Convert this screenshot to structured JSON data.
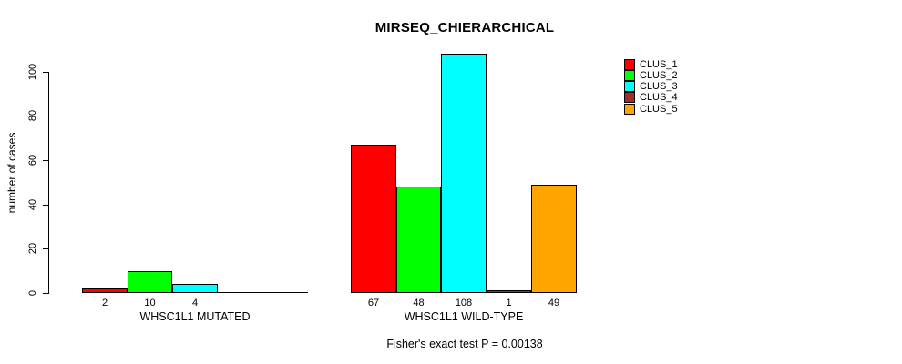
{
  "chart_data": {
    "type": "bar",
    "title": "MIRSEQ_CHIERARCHICAL",
    "ylabel": "number of cases",
    "yticks": [
      0,
      20,
      40,
      60,
      80,
      100
    ],
    "ylim": [
      0,
      110
    ],
    "grid": false,
    "legend_position": "top-right",
    "legend": [
      {
        "label": "CLUS_1",
        "color": "#FF0000"
      },
      {
        "label": "CLUS_2",
        "color": "#00FF00"
      },
      {
        "label": "CLUS_3",
        "color": "#00FFFF"
      },
      {
        "label": "CLUS_4",
        "color": "#A52A2A"
      },
      {
        "label": "CLUS_5",
        "color": "#FFA500"
      }
    ],
    "groups": [
      {
        "label": "WHSC1L1 MUTATED",
        "values": [
          2,
          10,
          4,
          0,
          0
        ],
        "bar_labels": [
          "2",
          "10",
          "4",
          "",
          ""
        ]
      },
      {
        "label": "WHSC1L1 WILD-TYPE",
        "values": [
          67,
          48,
          108,
          1,
          49
        ],
        "bar_labels": [
          "67",
          "48",
          "108",
          "1",
          "49"
        ]
      }
    ],
    "annotation": "Fisher's exact test P = 0.00138"
  }
}
